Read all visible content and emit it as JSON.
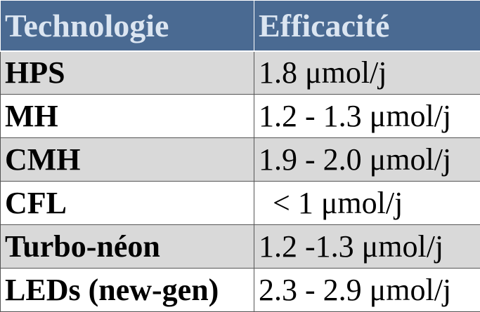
{
  "table": {
    "header": [
      "Technologie",
      "Efficacité"
    ],
    "rows": [
      [
        "HPS",
        "1.8 μmol/j"
      ],
      [
        "MH",
        "1.2 - 1.3 μmol/j"
      ],
      [
        "CMH",
        "1.9 - 2.0 μmol/j"
      ],
      [
        "CFL",
        "< 1 μmol/j"
      ],
      [
        "Turbo-néon",
        "1.2 -1.3 μmol/j"
      ],
      [
        "LEDs (new-gen)",
        "2.3 - 2.9 μmol/j"
      ]
    ]
  }
}
